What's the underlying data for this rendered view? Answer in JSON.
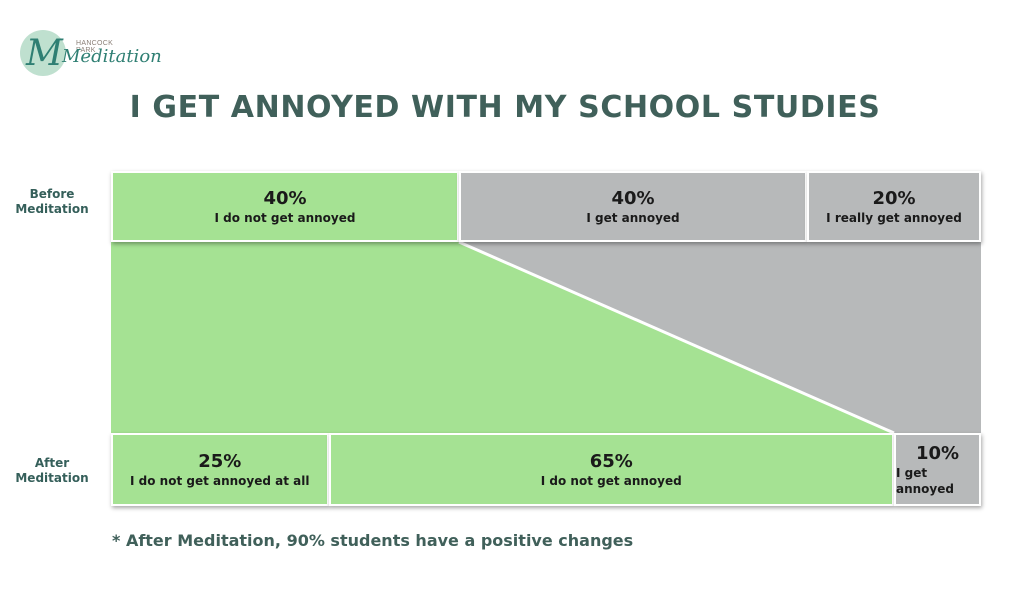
{
  "logo": {
    "top_text": "HANCOCK PARK",
    "word": "Meditation",
    "letter": "M"
  },
  "title": "I GET ANNOYED WITH MY SCHOOL STUDIES",
  "footnote": "* After Meditation, 90% students have a positive changes",
  "colors": {
    "positive": "#a5e293",
    "negative": "#b7b9ba",
    "text": "#40605a"
  },
  "chart_data": {
    "type": "bar",
    "orientation": "horizontal-stacked-100",
    "rows": [
      {
        "name": "Before Meditation",
        "segments": [
          {
            "pct_label": "40%",
            "value": 40,
            "label": "I do not get annoyed",
            "tone": "positive"
          },
          {
            "pct_label": "40%",
            "value": 40,
            "label": "I get annoyed",
            "tone": "negative"
          },
          {
            "pct_label": "20%",
            "value": 20,
            "label": "I really get annoyed",
            "tone": "negative"
          }
        ]
      },
      {
        "name": "After Meditation",
        "segments": [
          {
            "pct_label": "25%",
            "value": 25,
            "label": "I do not get annoyed at all",
            "tone": "positive"
          },
          {
            "pct_label": "65%",
            "value": 65,
            "label": "I do not get annoyed",
            "tone": "positive"
          },
          {
            "pct_label": "10%",
            "value": 10,
            "label": "I get annoyed",
            "tone": "negative"
          }
        ]
      }
    ],
    "positive_share": {
      "before": 40,
      "after": 90
    }
  }
}
